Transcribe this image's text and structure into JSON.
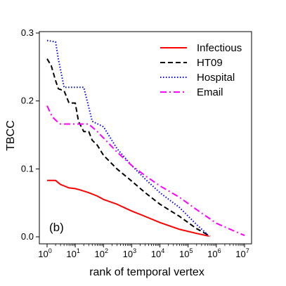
{
  "chart_data": {
    "type": "line",
    "title": "",
    "panel_label": "(b)",
    "xlabel": "rank of temporal vertex",
    "ylabel": "TBCC",
    "xscale": "log",
    "xlim": [
      1,
      10000000
    ],
    "ylim": [
      0,
      0.3
    ],
    "x_ticks": [
      {
        "value": 1,
        "base": "10",
        "exp": "0"
      },
      {
        "value": 10,
        "base": "10",
        "exp": "1"
      },
      {
        "value": 100,
        "base": "10",
        "exp": "2"
      },
      {
        "value": 1000,
        "base": "10",
        "exp": "3"
      },
      {
        "value": 10000,
        "base": "10",
        "exp": "4"
      },
      {
        "value": 100000,
        "base": "10",
        "exp": "5"
      },
      {
        "value": 1000000,
        "base": "10",
        "exp": "6"
      },
      {
        "value": 10000000,
        "base": "10",
        "exp": "7"
      }
    ],
    "y_ticks": [
      {
        "value": 0.0,
        "label": "0.0"
      },
      {
        "value": 0.1,
        "label": "0.1"
      },
      {
        "value": 0.2,
        "label": "0.2"
      },
      {
        "value": 0.3,
        "label": "0.3"
      }
    ],
    "grid": false,
    "legend_position": "top-right",
    "series": [
      {
        "name": "Infectious",
        "color": "#ff0000",
        "dash": "solid",
        "points": [
          [
            1,
            0.083
          ],
          [
            2,
            0.083
          ],
          [
            3,
            0.077
          ],
          [
            4,
            0.075
          ],
          [
            6,
            0.072
          ],
          [
            10,
            0.071
          ],
          [
            15,
            0.069
          ],
          [
            30,
            0.065
          ],
          [
            60,
            0.06
          ],
          [
            100,
            0.055
          ],
          [
            300,
            0.048
          ],
          [
            1000,
            0.038
          ],
          [
            3000,
            0.03
          ],
          [
            10000,
            0.021
          ],
          [
            50000,
            0.011
          ],
          [
            200000,
            0.005
          ],
          [
            550000,
            0.001
          ]
        ]
      },
      {
        "name": "HT09",
        "color": "#000000",
        "dash": "dashed",
        "points": [
          [
            1,
            0.262
          ],
          [
            1.4,
            0.252
          ],
          [
            2,
            0.23
          ],
          [
            2.5,
            0.218
          ],
          [
            4,
            0.215
          ],
          [
            6,
            0.197
          ],
          [
            10,
            0.197
          ],
          [
            13,
            0.17
          ],
          [
            20,
            0.155
          ],
          [
            30,
            0.155
          ],
          [
            40,
            0.142
          ],
          [
            60,
            0.135
          ],
          [
            100,
            0.12
          ],
          [
            300,
            0.1
          ],
          [
            1000,
            0.082
          ],
          [
            3000,
            0.065
          ],
          [
            10000,
            0.048
          ],
          [
            50000,
            0.03
          ],
          [
            200000,
            0.012
          ],
          [
            600000,
            0.001
          ]
        ]
      },
      {
        "name": "Hospital",
        "color": "#0000ff",
        "dash": "dotted",
        "points": [
          [
            1,
            0.289
          ],
          [
            2,
            0.287
          ],
          [
            2.5,
            0.262
          ],
          [
            4,
            0.22
          ],
          [
            10,
            0.22
          ],
          [
            20,
            0.22
          ],
          [
            40,
            0.17
          ],
          [
            100,
            0.162
          ],
          [
            150,
            0.15
          ],
          [
            300,
            0.13
          ],
          [
            1000,
            0.105
          ],
          [
            3000,
            0.085
          ],
          [
            10000,
            0.065
          ],
          [
            50000,
            0.043
          ],
          [
            200000,
            0.018
          ],
          [
            500000,
            0.003
          ]
        ]
      },
      {
        "name": "Email",
        "color": "#ff00ff",
        "dash": "dashdot",
        "points": [
          [
            1,
            0.193
          ],
          [
            1.5,
            0.177
          ],
          [
            2.5,
            0.168
          ],
          [
            3,
            0.166
          ],
          [
            5,
            0.166
          ],
          [
            10,
            0.166
          ],
          [
            30,
            0.166
          ],
          [
            60,
            0.155
          ],
          [
            150,
            0.138
          ],
          [
            300,
            0.125
          ],
          [
            1000,
            0.105
          ],
          [
            3000,
            0.09
          ],
          [
            10000,
            0.075
          ],
          [
            50000,
            0.058
          ],
          [
            200000,
            0.04
          ],
          [
            1000000,
            0.02
          ],
          [
            10000000,
            0.002
          ]
        ]
      }
    ]
  }
}
